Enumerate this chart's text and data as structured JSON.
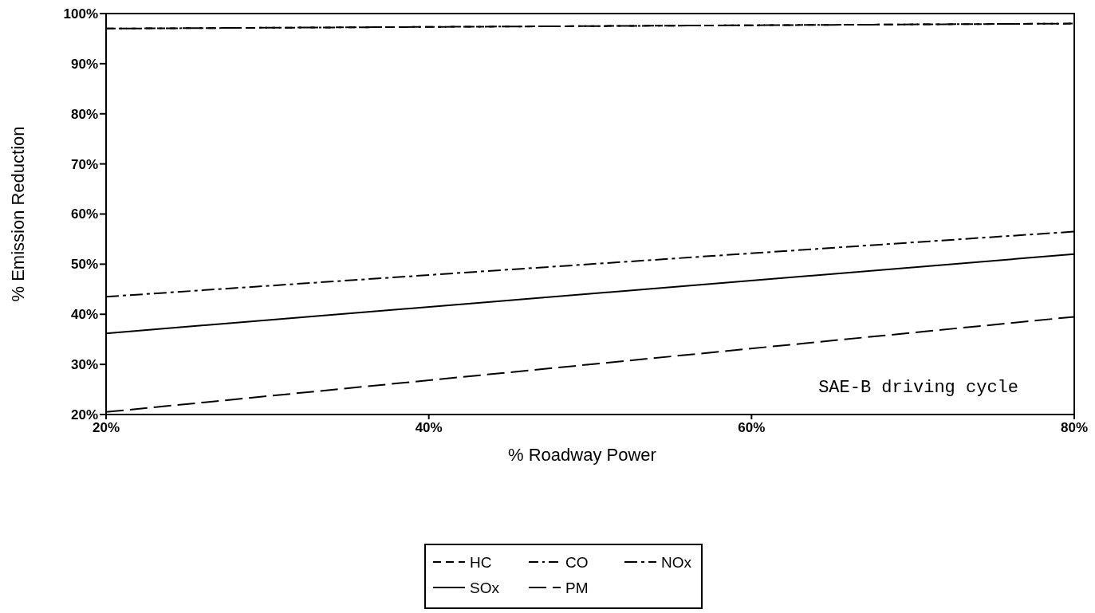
{
  "chart_data": {
    "type": "line",
    "xlabel": "% Roadway Power",
    "ylabel": "% Emission Reduction",
    "x": [
      20,
      80
    ],
    "series": [
      {
        "name": "HC",
        "color": "#000000",
        "values": [
          97,
          98
        ],
        "line_style": "dashed"
      },
      {
        "name": "CO",
        "color": "#000000",
        "values": [
          97,
          98
        ],
        "line_style": "dashed"
      },
      {
        "name": "NOx",
        "color": "#000000",
        "values": [
          43.5,
          56.5
        ],
        "line_style": "dashed"
      },
      {
        "name": "SOx",
        "color": "#000000",
        "values": [
          36.2,
          52
        ],
        "line_style": "solid"
      },
      {
        "name": "PM",
        "color": "#000000",
        "values": [
          20.5,
          39.5
        ],
        "line_style": "dashed"
      }
    ],
    "xlim": [
      20,
      80
    ],
    "ylim": [
      20,
      100
    ],
    "xticks": [
      {
        "value": 20,
        "label": "20%"
      },
      {
        "value": 40,
        "label": "40%"
      },
      {
        "value": 60,
        "label": "60%"
      },
      {
        "value": 80,
        "label": "80%"
      }
    ],
    "yticks": [
      {
        "value": 20,
        "label": "20%"
      },
      {
        "value": 30,
        "label": "30%"
      },
      {
        "value": 40,
        "label": "40%"
      },
      {
        "value": 50,
        "label": "50%"
      },
      {
        "value": 60,
        "label": "60%"
      },
      {
        "value": 70,
        "label": "70%"
      },
      {
        "value": 80,
        "label": "80%"
      },
      {
        "value": 90,
        "label": "90%"
      },
      {
        "value": 100,
        "label": "100%"
      }
    ],
    "annotations": [
      "SAE-B driving cycle"
    ],
    "grid": false,
    "legend": "bottom",
    "marker": "none"
  }
}
